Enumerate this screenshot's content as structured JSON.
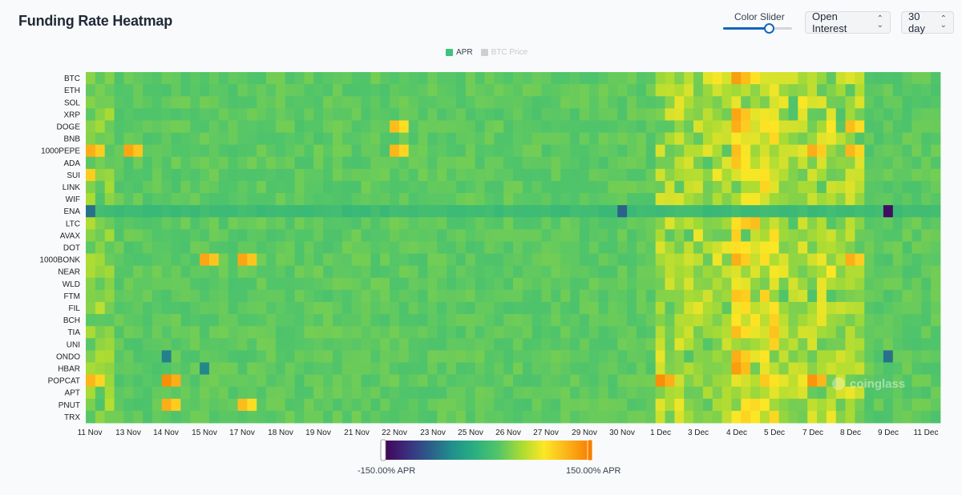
{
  "header": {
    "title": "Funding Rate Heatmap",
    "slider_label": "Color Slider",
    "slider_value": 0.66,
    "metric_select": "Open Interest",
    "range_select": "30 day"
  },
  "legend": {
    "items": [
      {
        "label": "APR",
        "color": "#3cc47c"
      },
      {
        "label": "BTC Price",
        "color": "#cfcfcf"
      }
    ]
  },
  "colorbar": {
    "min_label": "-150.00% APR",
    "max_label": "150.00% APR"
  },
  "watermark": "coinglass",
  "chart_data": {
    "type": "heatmap",
    "title": "Funding Rate Heatmap",
    "rows": [
      "BTC",
      "ETH",
      "SOL",
      "XRP",
      "DOGE",
      "BNB",
      "1000PEPE",
      "ADA",
      "SUI",
      "LINK",
      "WIF",
      "ENA",
      "LTC",
      "AVAX",
      "DOT",
      "1000BONK",
      "NEAR",
      "WLD",
      "FTM",
      "FIL",
      "BCH",
      "TIA",
      "UNI",
      "ONDO",
      "HBAR",
      "POPCAT",
      "APT",
      "PNUT",
      "TRX"
    ],
    "x_tick_labels": [
      "11 Nov",
      "13 Nov",
      "14 Nov",
      "15 Nov",
      "17 Nov",
      "18 Nov",
      "19 Nov",
      "21 Nov",
      "22 Nov",
      "23 Nov",
      "25 Nov",
      "26 Nov",
      "27 Nov",
      "29 Nov",
      "30 Nov",
      "1 Dec",
      "3 Dec",
      "4 Dec",
      "5 Dec",
      "7 Dec",
      "8 Dec",
      "9 Dec",
      "11 Dec"
    ],
    "columns": 90,
    "value_unit": "% APR",
    "color_range": [
      -150,
      150
    ],
    "colorscale": [
      "#440154",
      "#3b2c7e",
      "#2c5c8a",
      "#21908c",
      "#2ab07f",
      "#52c569",
      "#a8db34",
      "#fde725",
      "#fbb31a",
      "#f77f00"
    ],
    "hotspots": [
      {
        "row": "BTC",
        "x": "4 Dec",
        "value": 130
      },
      {
        "row": "XRP",
        "x": "4 Dec",
        "value": 125
      },
      {
        "row": "DOGE",
        "x": "22 Nov",
        "value": 110
      },
      {
        "row": "DOGE",
        "x": "4 Dec",
        "value": 120
      },
      {
        "row": "DOGE",
        "x": "8 Dec",
        "value": 110
      },
      {
        "row": "1000PEPE",
        "x": "11 Nov",
        "value": 120
      },
      {
        "row": "1000PEPE",
        "x": "13 Nov",
        "value": 125
      },
      {
        "row": "1000PEPE",
        "x": "22 Nov",
        "value": 115
      },
      {
        "row": "1000PEPE",
        "x": "7 Dec",
        "value": 120
      },
      {
        "row": "1000PEPE",
        "x": "8 Dec",
        "value": 115
      },
      {
        "row": "ADA",
        "x": "4 Dec",
        "value": 105
      },
      {
        "row": "SUI",
        "x": "11 Nov",
        "value": 100
      },
      {
        "row": "ENA",
        "x": "11 Nov",
        "value": -70
      },
      {
        "row": "ENA",
        "x": "30 Nov",
        "value": -80
      },
      {
        "row": "ENA",
        "x": "9 Dec",
        "value": -140
      },
      {
        "row": "1000BONK",
        "x": "15 Nov",
        "value": 125
      },
      {
        "row": "1000BONK",
        "x": "17 Nov",
        "value": 125
      },
      {
        "row": "1000BONK",
        "x": "4 Dec",
        "value": 120
      },
      {
        "row": "1000BONK",
        "x": "8 Dec",
        "value": 120
      },
      {
        "row": "TIA",
        "x": "4 Dec",
        "value": 110
      },
      {
        "row": "ONDO",
        "x": "14 Nov",
        "value": -60
      },
      {
        "row": "ONDO",
        "x": "4 Dec",
        "value": 120
      },
      {
        "row": "ONDO",
        "x": "9 Dec",
        "value": -70
      },
      {
        "row": "HBAR",
        "x": "4 Dec",
        "value": 130
      },
      {
        "row": "HBAR",
        "x": "15 Nov",
        "value": -55
      },
      {
        "row": "POPCAT",
        "x": "11 Nov",
        "value": 115
      },
      {
        "row": "POPCAT",
        "x": "14 Nov",
        "value": 140
      },
      {
        "row": "POPCAT",
        "x": "1 Dec",
        "value": 140
      },
      {
        "row": "POPCAT",
        "x": "7 Dec",
        "value": 135
      },
      {
        "row": "PNUT",
        "x": "14 Nov",
        "value": 120
      },
      {
        "row": "PNUT",
        "x": "17 Nov",
        "value": 110
      }
    ]
  }
}
